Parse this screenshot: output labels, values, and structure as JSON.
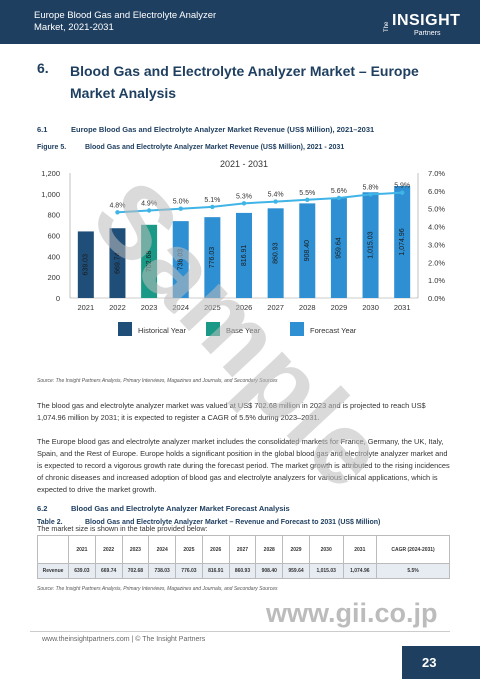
{
  "header": {
    "title": "Europe Blood Gas and Electrolyte Analyzer Market, 2021-2031",
    "logo_the": "The",
    "logo_name": "INSIGHT",
    "logo_partners": "Partners"
  },
  "section": {
    "number": "6.",
    "title": "Blood Gas and Electrolyte Analyzer Market – Europe Market Analysis"
  },
  "sub1": {
    "number": "6.1",
    "title": "Europe Blood Gas and Electrolyte Analyzer Market Revenue (US$ Million), 2021–2031"
  },
  "figure": {
    "label": "Figure 5.",
    "title": "Blood Gas and Electrolyte Analyzer Market Revenue (US$ Million), 2021 - 2031"
  },
  "chart_data": {
    "type": "bar",
    "title": "2021 - 2031",
    "categories": [
      "2021",
      "2022",
      "2023",
      "2024",
      "2025",
      "2026",
      "2027",
      "2028",
      "2029",
      "2030",
      "2031"
    ],
    "series": [
      {
        "name": "Revenue",
        "values": [
          639.03,
          669.74,
          702.68,
          738.03,
          776.03,
          816.91,
          860.93,
          908.4,
          959.64,
          1015.03,
          1074.96
        ],
        "labels": [
          "639.03",
          "669.74",
          "702.68",
          "738.03",
          "776.03",
          "816.91",
          "860.93",
          "908.40",
          "959.64",
          "1,015.03",
          "1,074.96"
        ],
        "kinds": [
          "historical",
          "historical",
          "base",
          "forecast",
          "forecast",
          "forecast",
          "forecast",
          "forecast",
          "forecast",
          "forecast",
          "forecast"
        ]
      },
      {
        "name": "Growth",
        "values": [
          null,
          4.8,
          4.9,
          5.0,
          5.1,
          5.3,
          5.4,
          5.5,
          5.6,
          5.8,
          5.9
        ],
        "labels": [
          "",
          "4.8%",
          "4.9%",
          "5.0%",
          "5.1%",
          "5.3%",
          "5.4%",
          "5.5%",
          "5.6%",
          "5.8%",
          "5.9%"
        ]
      }
    ],
    "y_left": {
      "range": [
        0,
        1200
      ],
      "ticks": [
        "0",
        "200",
        "400",
        "600",
        "800",
        "1,000",
        "1,200"
      ]
    },
    "y_right": {
      "range": [
        0,
        7
      ],
      "ticks": [
        "0.0%",
        "1.0%",
        "2.0%",
        "3.0%",
        "4.0%",
        "5.0%",
        "6.0%",
        "7.0%"
      ]
    },
    "legend": [
      {
        "label": "Historical Year",
        "color": "#1f4e79"
      },
      {
        "label": "Base Year",
        "color": "#1a9a86"
      },
      {
        "label": "Forecast Year",
        "color": "#2e8fd3"
      }
    ],
    "line_color": "#40b4e6",
    "grid": false,
    "legend_position": "bottom"
  },
  "source1": "Source: The Insight Partners Analysis, Primary Interviews, Magazines and Journals, and Secondary Sources",
  "para1": "The blood gas and electrolyte analyzer market was valued at US$ 702.68 million in 2023 and is projected to reach US$ 1,074.96 million by 2031; it is expected to register a CAGR of 5.5% during 2023–2031.",
  "para2": "The Europe blood gas and electrolyte analyzer market includes the consolidated markets for France, Germany, the UK, Italy, Spain, and the Rest of Europe. Europe holds a significant position in the global blood gas and electrolyte analyzer market and is expected to record a vigorous growth rate during the forecast period. The market growth is attributed to the rising incidences of chronic diseases and increased adoption of blood gas and electrolyte analyzers for various clinical applications, which is expected to drive the market growth.",
  "sub2": {
    "number": "6.2",
    "title": "Blood Gas and Electrolyte Analyzer Market Forecast Analysis"
  },
  "para3": "The market size is shown in the table provided below:",
  "table": {
    "label": "Table 2.",
    "title": "Blood Gas and Electrolyte Analyzer Market – Revenue and Forecast to 2031 (US$ Million)",
    "headers": [
      "",
      "2021",
      "2022",
      "2023",
      "2024",
      "2025",
      "2026",
      "2027",
      "2028",
      "2029",
      "2030",
      "2031",
      "CAGR (2024-2031)"
    ],
    "row": [
      "Revenue",
      "639.03",
      "669.74",
      "702.68",
      "738.03",
      "776.03",
      "816.91",
      "860.93",
      "908.40",
      "959.64",
      "1,015.03",
      "1,074.96",
      "5.5%"
    ]
  },
  "source2": "Source: The Insight Partners Analysis, Primary Interviews, Magazines and Journals, and Secondary Sources",
  "footer": {
    "text": "www.theinsightpartners.com    |   © The Insight Partners",
    "page": "23"
  },
  "watermark": {
    "sample": "Sample",
    "url": "www.gii.co.jp"
  }
}
